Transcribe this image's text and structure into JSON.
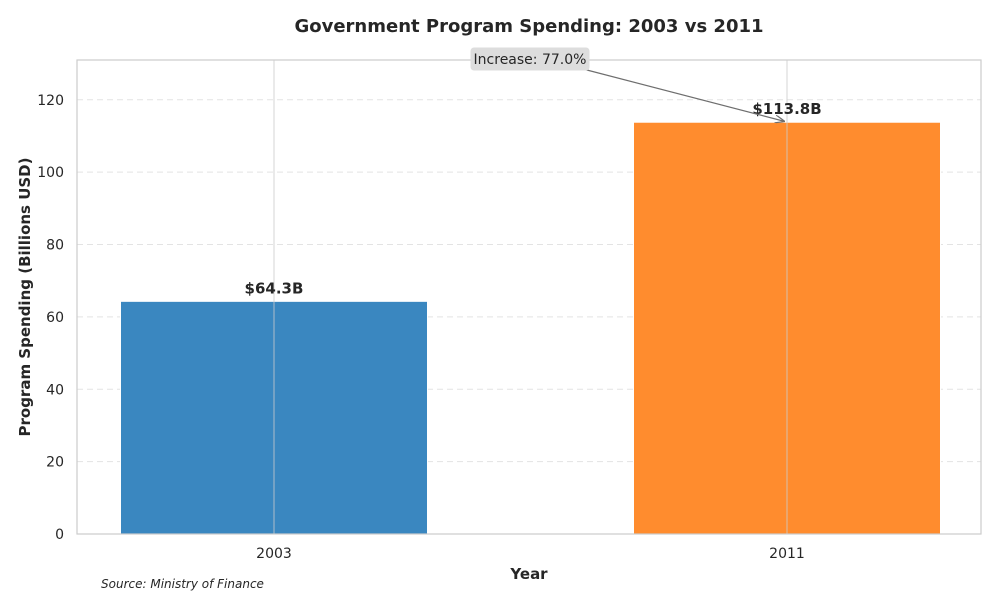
{
  "chart_data": {
    "type": "bar",
    "title": "Government Program Spending: 2003 vs 2011",
    "xlabel": "Year",
    "ylabel": "Program Spending (Billions USD)",
    "categories": [
      "2003",
      "2011"
    ],
    "values": [
      64.3,
      113.8
    ],
    "data_labels": [
      "$64.3B",
      "$113.8B"
    ],
    "colors": [
      "#3a87c0",
      "#ff8c2e"
    ],
    "ylim": [
      0,
      131
    ],
    "yticks": [
      0,
      20,
      40,
      60,
      80,
      100,
      120
    ],
    "grid": true,
    "annotation": {
      "text": "Increase: 77.0%",
      "target_category": "2011",
      "target_value": 113.8
    },
    "source": "Source: Ministry of Finance"
  }
}
